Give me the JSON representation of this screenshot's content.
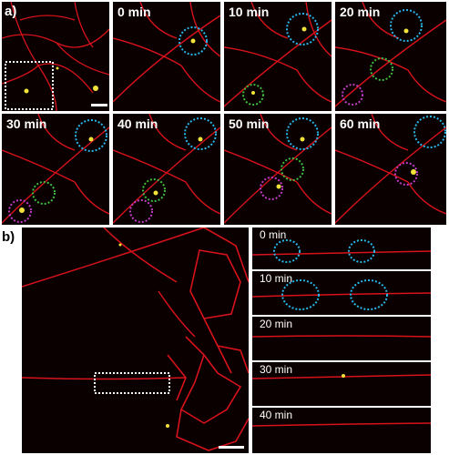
{
  "figure_a": {
    "label": "a)",
    "frames": [
      "0 min",
      "10 min",
      "20 min",
      "30 min",
      "40 min",
      "50 min",
      "60 min"
    ]
  },
  "figure_b": {
    "label": "b)",
    "frames": [
      "0 min",
      "10 min",
      "20 min",
      "30 min",
      "40 min"
    ]
  },
  "colors": {
    "network": "#e0141a",
    "vesicle": "#f2e33a",
    "circle_blue": "#29b6e8",
    "circle_green": "#3fbf3f",
    "circle_magenta": "#c23cc8",
    "box": "#ffffff"
  }
}
